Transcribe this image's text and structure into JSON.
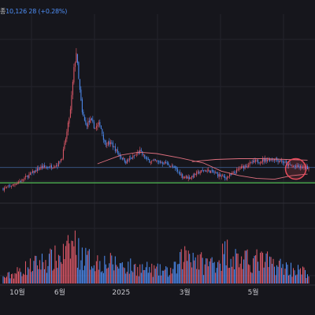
{
  "info": {
    "label": "종",
    "close": "10,126",
    "change": "28",
    "change_pct": "(+0.28%)"
  },
  "colors": {
    "background": "#16161c",
    "up": "#e35a6a",
    "down": "#4f8ff7",
    "support_line": "#4caf50",
    "reference_line": "#3b5b8c",
    "ma_line": "#e0707f",
    "highlight_circle": "#e84c5c",
    "grid": "#24242c",
    "separator": "#2e2e36"
  },
  "chart_data": {
    "type": "candlestick",
    "title": "",
    "xlabel": "",
    "ylabel": "",
    "grid": true,
    "x_tick_labels": [
      {
        "label": "10월",
        "index": 12
      },
      {
        "label": "6월",
        "index": 48
      },
      {
        "label": "2025",
        "index": 100
      },
      {
        "label": "3월",
        "index": 154
      },
      {
        "label": "5월",
        "index": 212
      }
    ],
    "price_ylim": [
      7000,
      19000
    ],
    "volume_ylim": [
      0,
      100
    ],
    "support_level": 7850,
    "reference_level": 8900,
    "highlight": {
      "index": 248,
      "value": 8800
    },
    "ma_series": {
      "name": "",
      "points": [
        [
          80,
          9150
        ],
        [
          100,
          9750
        ],
        [
          115,
          9950
        ],
        [
          130,
          9850
        ],
        [
          150,
          9550
        ],
        [
          170,
          9200
        ],
        [
          185,
          8650
        ],
        [
          200,
          8350
        ],
        [
          215,
          8150
        ],
        [
          230,
          8100
        ],
        [
          245,
          8350
        ],
        [
          258,
          8450
        ]
      ]
    },
    "ma_series_2": {
      "name": "",
      "points": [
        [
          160,
          9300
        ],
        [
          180,
          9450
        ],
        [
          200,
          9500
        ],
        [
          220,
          9500
        ],
        [
          240,
          9450
        ],
        [
          258,
          9400
        ]
      ]
    },
    "anchors": [
      [
        0,
        7450
      ],
      [
        8,
        7700
      ],
      [
        16,
        8050
      ],
      [
        24,
        8500
      ],
      [
        32,
        8900
      ],
      [
        40,
        8950
      ],
      [
        46,
        9100
      ],
      [
        50,
        9600
      ],
      [
        54,
        11300
      ],
      [
        57,
        12800
      ],
      [
        60,
        15600
      ],
      [
        62,
        16800
      ],
      [
        64,
        14900
      ],
      [
        67,
        12600
      ],
      [
        70,
        11800
      ],
      [
        74,
        12100
      ],
      [
        78,
        11600
      ],
      [
        82,
        11900
      ],
      [
        86,
        10600
      ],
      [
        92,
        10500
      ],
      [
        98,
        9800
      ],
      [
        104,
        9300
      ],
      [
        110,
        9600
      ],
      [
        116,
        10000
      ],
      [
        122,
        9400
      ],
      [
        130,
        9300
      ],
      [
        138,
        9200
      ],
      [
        146,
        8800
      ],
      [
        152,
        8300
      ],
      [
        158,
        8200
      ],
      [
        164,
        8500
      ],
      [
        170,
        8700
      ],
      [
        176,
        8650
      ],
      [
        182,
        8400
      ],
      [
        188,
        8200
      ],
      [
        194,
        8400
      ],
      [
        200,
        8800
      ],
      [
        206,
        9050
      ],
      [
        212,
        9250
      ],
      [
        218,
        9350
      ],
      [
        224,
        9450
      ],
      [
        230,
        9500
      ],
      [
        236,
        9350
      ],
      [
        242,
        9050
      ],
      [
        248,
        8950
      ],
      [
        254,
        8900
      ],
      [
        259,
        8900
      ]
    ],
    "volume_anchors": [
      [
        0,
        8
      ],
      [
        10,
        14
      ],
      [
        20,
        22
      ],
      [
        30,
        28
      ],
      [
        40,
        32
      ],
      [
        48,
        36
      ],
      [
        56,
        45
      ],
      [
        60,
        58
      ],
      [
        64,
        42
      ],
      [
        70,
        34
      ],
      [
        80,
        30
      ],
      [
        90,
        28
      ],
      [
        100,
        26
      ],
      [
        110,
        22
      ],
      [
        120,
        20
      ],
      [
        130,
        18
      ],
      [
        140,
        16
      ],
      [
        148,
        22
      ],
      [
        152,
        36
      ],
      [
        158,
        44
      ],
      [
        164,
        34
      ],
      [
        170,
        26
      ],
      [
        180,
        30
      ],
      [
        190,
        44
      ],
      [
        196,
        36
      ],
      [
        204,
        30
      ],
      [
        214,
        32
      ],
      [
        222,
        30
      ],
      [
        230,
        26
      ],
      [
        240,
        22
      ],
      [
        250,
        18
      ],
      [
        259,
        14
      ]
    ],
    "candle_count": 260
  }
}
